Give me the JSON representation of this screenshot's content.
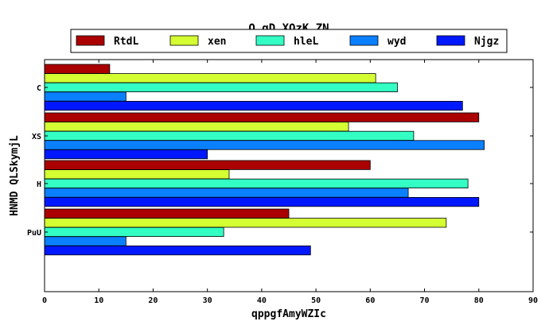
{
  "chart_data": {
    "type": "bar",
    "orientation": "horizontal",
    "title": "Q qD XQzK ZN",
    "xlabel": "qppgfAmyWZIc",
    "ylabel": "HNMD QLSkymjL",
    "categories": [
      "C",
      "XS",
      "H",
      "PuU"
    ],
    "xlim": [
      0,
      90
    ],
    "xticks": [
      0,
      10,
      20,
      30,
      40,
      50,
      60,
      70,
      80,
      90
    ],
    "legend_position": "top",
    "grid": false,
    "series": [
      {
        "name": "RtdL",
        "color": "#aa0000",
        "values": [
          12,
          80,
          60,
          45
        ]
      },
      {
        "name": "xen",
        "color": "#d4ff33",
        "values": [
          61,
          56,
          34,
          74
        ]
      },
      {
        "name": "hleL",
        "color": "#33ffc4",
        "values": [
          65,
          68,
          78,
          33
        ]
      },
      {
        "name": "wyd",
        "color": "#0a80ff",
        "values": [
          15,
          81,
          67,
          15
        ]
      },
      {
        "name": "Njgz",
        "color": "#0018ff",
        "values": [
          77,
          30,
          80,
          49
        ]
      }
    ]
  }
}
